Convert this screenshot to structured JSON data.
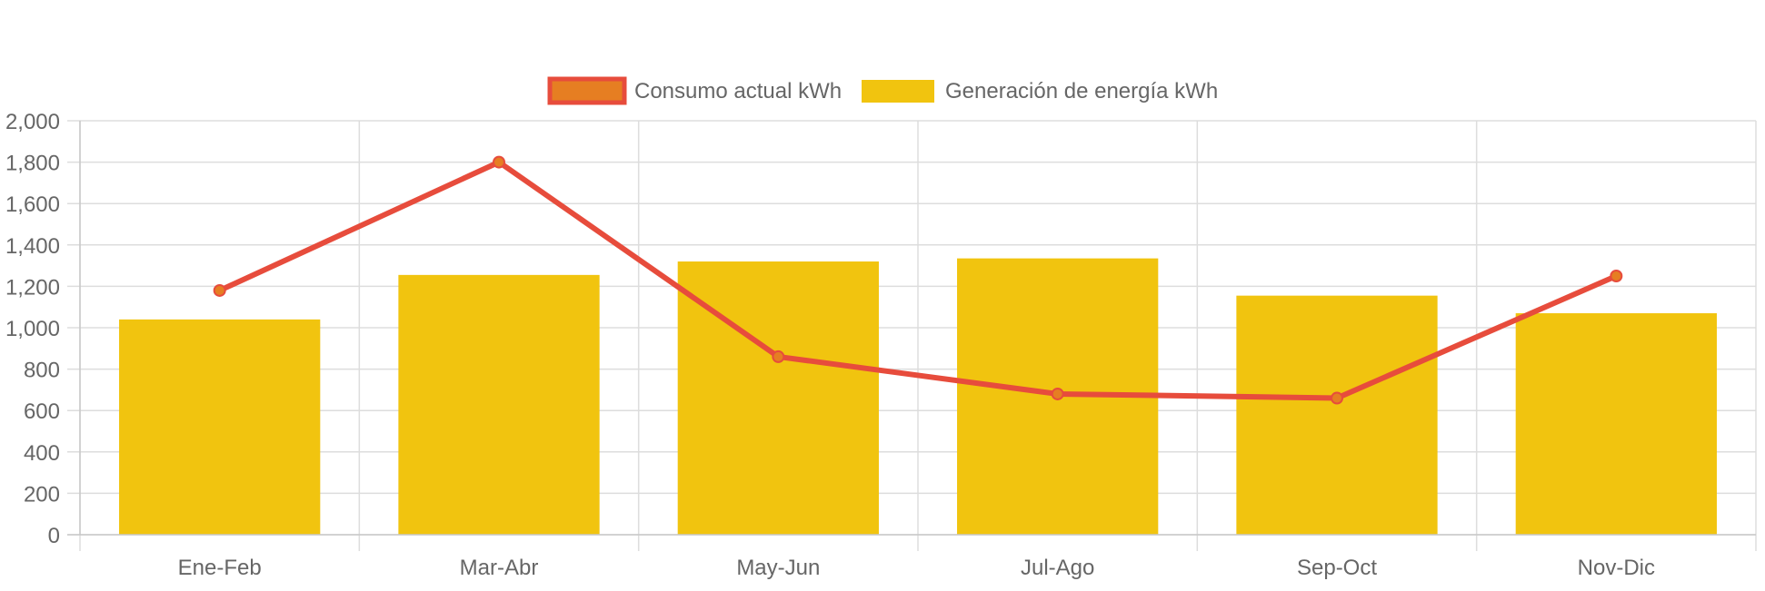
{
  "chart_data": {
    "type": "bar",
    "title": "",
    "xlabel": "",
    "ylabel": "",
    "categories": [
      "Ene-Feb",
      "Mar-Abr",
      "May-Jun",
      "Jul-Ago",
      "Sep-Oct",
      "Nov-Dic"
    ],
    "ylim": [
      0,
      2000
    ],
    "yticks": [
      0,
      200,
      400,
      600,
      800,
      1000,
      1200,
      1400,
      1600,
      1800,
      2000
    ],
    "ytick_labels": [
      "0",
      "200",
      "400",
      "600",
      "800",
      "1,000",
      "1,200",
      "1,400",
      "1,600",
      "1,800",
      "2,000"
    ],
    "grid": true,
    "legend_position": "top-center",
    "series": [
      {
        "name": "Consumo actual kWh",
        "type": "line",
        "values": [
          1180,
          1800,
          860,
          680,
          660,
          1250
        ],
        "color": "#e74c3c",
        "point_color": "#e67e22"
      },
      {
        "name": "Generación de energía kWh",
        "type": "bar",
        "values": [
          1040,
          1255,
          1320,
          1335,
          1155,
          1070
        ],
        "color": "#f1c40f"
      }
    ]
  }
}
